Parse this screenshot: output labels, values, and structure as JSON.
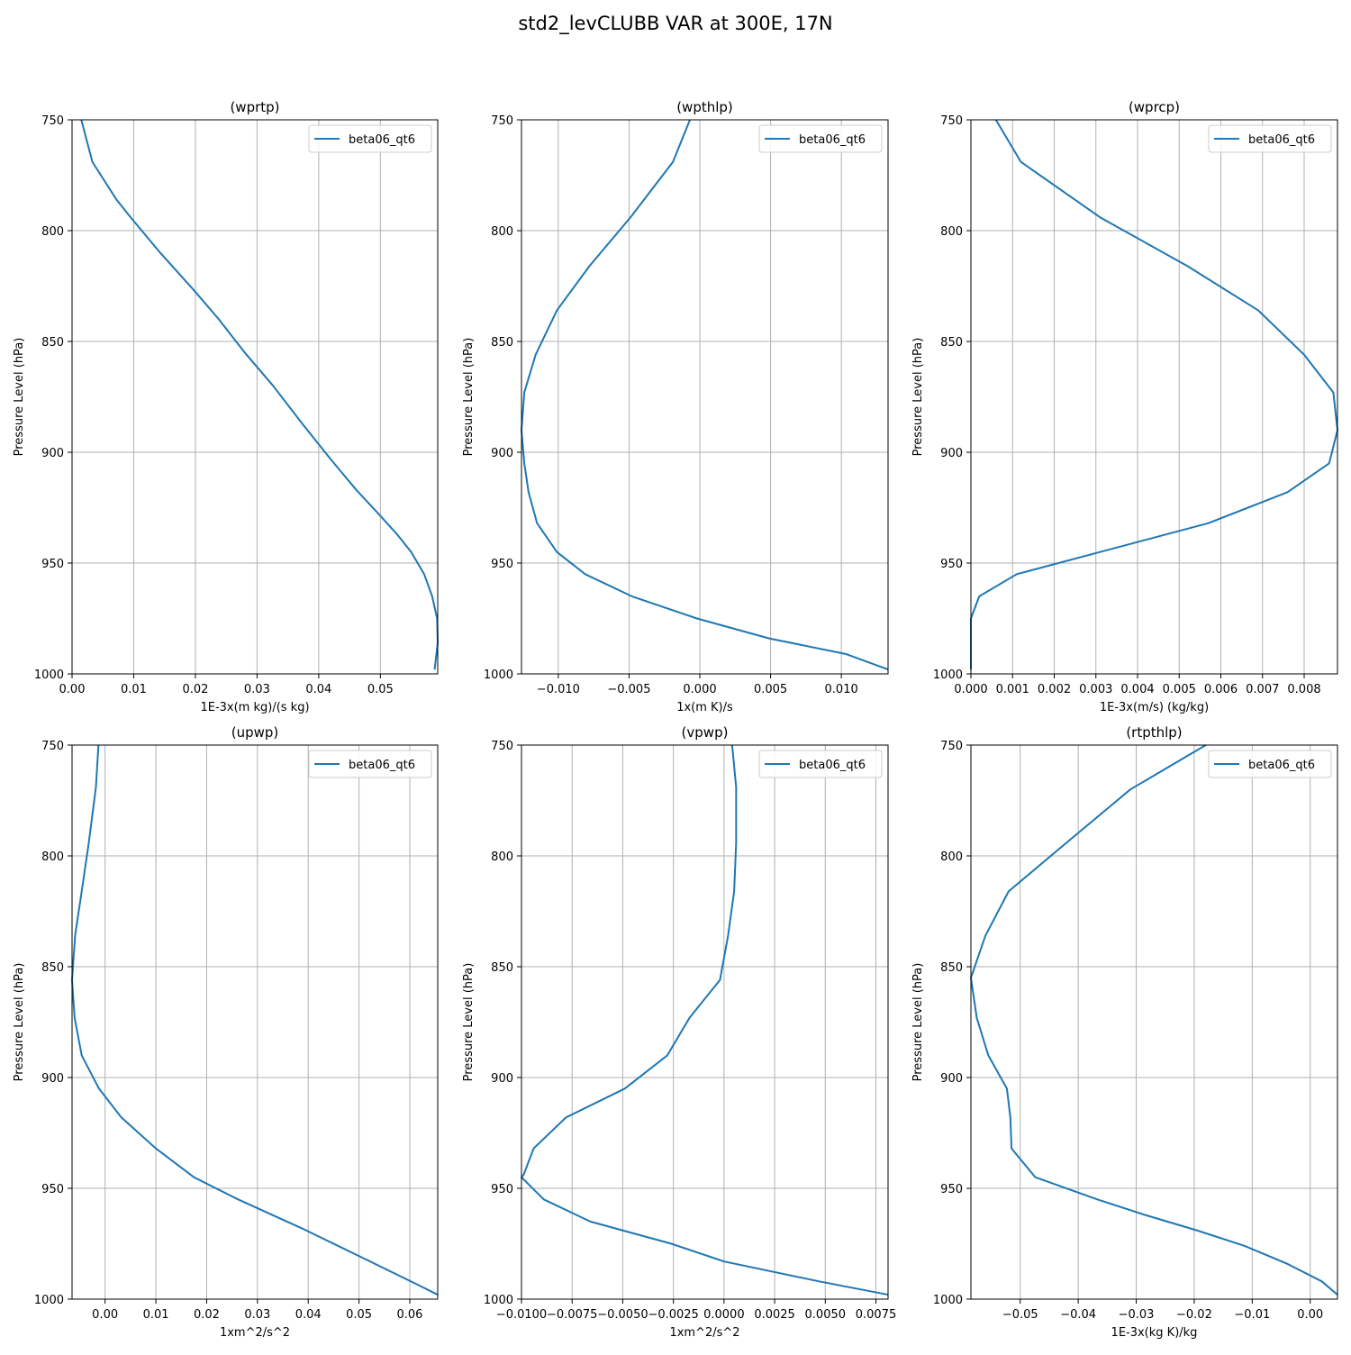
{
  "figure": {
    "suptitle": "std2_levCLUBB VAR at 300E, 17N",
    "line_color": "#1f77b4",
    "grid_color": "#b0b0b0",
    "legend_label": "beta06_qt6"
  },
  "chart_data": [
    {
      "type": "line",
      "title": "(wprtp)",
      "xlabel": "1E-3x(m kg)/(s kg)",
      "ylabel": "Pressure Level (hPa)",
      "xlim": [
        0.0,
        0.0593
      ],
      "ylim": [
        1000,
        750
      ],
      "y_inverted": true,
      "xticks": [
        0.0,
        0.01,
        0.02,
        0.03,
        0.04,
        0.05
      ],
      "xtick_labels": [
        "0.00",
        "0.01",
        "0.02",
        "0.03",
        "0.04",
        "0.05"
      ],
      "yticks": [
        750,
        800,
        850,
        900,
        950,
        1000
      ],
      "ytick_labels": [
        "750",
        "800",
        "850",
        "900",
        "950",
        "1000"
      ],
      "grid": true,
      "legend": "top-right",
      "series": [
        {
          "name": "beta06_qt6",
          "x": [
            0.0015,
            0.0033,
            0.0072,
            0.0095,
            0.0143,
            0.0198,
            0.0238,
            0.028,
            0.0326,
            0.0373,
            0.0419,
            0.0461,
            0.0501,
            0.0527,
            0.055,
            0.0571,
            0.0584,
            0.0592,
            0.0593,
            0.0588
          ],
          "y": [
            750,
            769,
            786,
            794,
            810,
            827,
            840,
            855,
            870,
            887,
            903,
            917,
            929,
            937,
            945,
            955,
            965,
            975,
            986,
            998
          ]
        }
      ]
    },
    {
      "type": "line",
      "title": "(wpthlp)",
      "xlabel": "1x(m K)/s",
      "ylabel": "Pressure Level (hPa)",
      "xlim": [
        -0.0126,
        0.0133
      ],
      "ylim": [
        1000,
        750
      ],
      "y_inverted": true,
      "xticks": [
        -0.01,
        -0.005,
        0.0,
        0.005,
        0.01
      ],
      "xtick_labels": [
        "−0.010",
        "−0.005",
        "0.000",
        "0.005",
        "0.010"
      ],
      "yticks": [
        750,
        800,
        850,
        900,
        950,
        1000
      ],
      "ytick_labels": [
        "750",
        "800",
        "850",
        "900",
        "950",
        "1000"
      ],
      "grid": true,
      "legend": "top-right",
      "series": [
        {
          "name": "beta06_qt6",
          "x": [
            -0.0007,
            -0.0019,
            -0.0049,
            -0.0078,
            -0.0101,
            -0.0116,
            -0.0124,
            -0.0126,
            -0.0124,
            -0.0121,
            -0.0115,
            -0.0101,
            -0.0081,
            -0.0048,
            -0.0002,
            0.0049,
            0.0103,
            0.0133
          ],
          "y": [
            750,
            769,
            794,
            816,
            836,
            856,
            873,
            890,
            905,
            918,
            932,
            945,
            955,
            965,
            975,
            984,
            991,
            998
          ]
        }
      ]
    },
    {
      "type": "line",
      "title": "(wprcp)",
      "xlabel": "1E-3x(m/s) (kg/kg)",
      "ylabel": "Pressure Level (hPa)",
      "xlim": [
        0.0,
        0.0088
      ],
      "ylim": [
        1000,
        750
      ],
      "y_inverted": true,
      "xticks": [
        0.0,
        0.001,
        0.002,
        0.003,
        0.004,
        0.005,
        0.006,
        0.007,
        0.008
      ],
      "xtick_labels": [
        "0.000",
        "0.001",
        "0.002",
        "0.003",
        "0.004",
        "0.005",
        "0.006",
        "0.007",
        "0.008"
      ],
      "yticks": [
        750,
        800,
        850,
        900,
        950,
        1000
      ],
      "ytick_labels": [
        "750",
        "800",
        "850",
        "900",
        "950",
        "1000"
      ],
      "grid": true,
      "legend": "top-right",
      "series": [
        {
          "name": "beta06_qt6",
          "x": [
            0.0006,
            0.0012,
            0.0031,
            0.0052,
            0.0069,
            0.008,
            0.0087,
            0.0088,
            0.0086,
            0.0076,
            0.0057,
            0.0031,
            0.0011,
            0.0002,
            0.0,
            0.0,
            0.0
          ],
          "y": [
            750,
            769,
            794,
            816,
            836,
            856,
            873,
            890,
            905,
            918,
            932,
            945,
            955,
            965,
            975,
            984,
            998
          ]
        }
      ]
    },
    {
      "type": "line",
      "title": "(upwp)",
      "xlabel": "1xm^2/s^2",
      "ylabel": "Pressure Level (hPa)",
      "xlim": [
        -0.0065,
        0.0655
      ],
      "ylim": [
        1000,
        750
      ],
      "y_inverted": true,
      "xticks": [
        0.0,
        0.01,
        0.02,
        0.03,
        0.04,
        0.05,
        0.06
      ],
      "xtick_labels": [
        "0.00",
        "0.01",
        "0.02",
        "0.03",
        "0.04",
        "0.05",
        "0.06"
      ],
      "yticks": [
        750,
        800,
        850,
        900,
        950,
        1000
      ],
      "ytick_labels": [
        "750",
        "800",
        "850",
        "900",
        "950",
        "1000"
      ],
      "grid": true,
      "legend": "top-right",
      "series": [
        {
          "name": "beta06_qt6",
          "x": [
            -0.0013,
            -0.0018,
            -0.0032,
            -0.0046,
            -0.0059,
            -0.0065,
            -0.006,
            -0.0046,
            -0.0012,
            0.0032,
            0.01,
            0.0175,
            0.0262,
            0.0387,
            0.0513,
            0.0611,
            0.0655
          ],
          "y": [
            750,
            769,
            794,
            816,
            836,
            856,
            873,
            890,
            905,
            918,
            932,
            945,
            955,
            968,
            982,
            993,
            998
          ]
        }
      ]
    },
    {
      "type": "line",
      "title": "(vpwp)",
      "xlabel": "1xm^2/s^2",
      "ylabel": "Pressure Level (hPa)",
      "xlim": [
        -0.01,
        0.0081
      ],
      "ylim": [
        1000,
        750
      ],
      "y_inverted": true,
      "xticks": [
        -0.01,
        -0.0075,
        -0.005,
        -0.0025,
        0.0,
        0.0025,
        0.005,
        0.0075
      ],
      "xtick_labels": [
        "−0.0100",
        "−0.0075",
        "−0.0050",
        "−0.0025",
        "0.0000",
        "0.0025",
        "0.0050",
        "0.0075"
      ],
      "yticks": [
        750,
        800,
        850,
        900,
        950,
        1000
      ],
      "ytick_labels": [
        "750",
        "800",
        "850",
        "900",
        "950",
        "1000"
      ],
      "grid": true,
      "legend": "top-right",
      "series": [
        {
          "name": "beta06_qt6",
          "x": [
            0.0004,
            0.0006,
            0.0006,
            0.0005,
            0.0002,
            -0.0002,
            -0.0017,
            -0.0028,
            -0.0049,
            -0.0078,
            -0.0094,
            -0.0099,
            -0.01,
            -0.0089,
            -0.0066,
            -0.0026,
            0.0,
            0.0047,
            0.0081
          ],
          "y": [
            750,
            769,
            794,
            816,
            836,
            856,
            873,
            890,
            905,
            918,
            932,
            944,
            945,
            955,
            965,
            975,
            983,
            992,
            998
          ]
        }
      ]
    },
    {
      "type": "line",
      "title": "(rtpthlp)",
      "xlabel": "1E-3x(kg K)/kg",
      "ylabel": "Pressure Level (hPa)",
      "xlim": [
        -0.0585,
        0.0047
      ],
      "ylim": [
        1000,
        750
      ],
      "y_inverted": true,
      "xticks": [
        -0.05,
        -0.04,
        -0.03,
        -0.02,
        -0.01,
        0.0
      ],
      "xtick_labels": [
        "−0.05",
        "−0.04",
        "−0.03",
        "−0.02",
        "−0.01",
        "0.00"
      ],
      "yticks": [
        750,
        800,
        850,
        900,
        950,
        1000
      ],
      "ytick_labels": [
        "750",
        "800",
        "850",
        "900",
        "950",
        "1000"
      ],
      "grid": true,
      "legend": "top-right",
      "series": [
        {
          "name": "beta06_qt6",
          "x": [
            -0.018,
            -0.031,
            -0.042,
            -0.052,
            -0.056,
            -0.0585,
            -0.0575,
            -0.0555,
            -0.0523,
            -0.0517,
            -0.0515,
            -0.0474,
            -0.0367,
            -0.0285,
            -0.0195,
            -0.0113,
            -0.004,
            0.002,
            0.0047
          ],
          "y": [
            750,
            770,
            794,
            816,
            836,
            855,
            873,
            890,
            905,
            918,
            932,
            945,
            955,
            962,
            969,
            976,
            984,
            992,
            998
          ]
        }
      ]
    }
  ]
}
